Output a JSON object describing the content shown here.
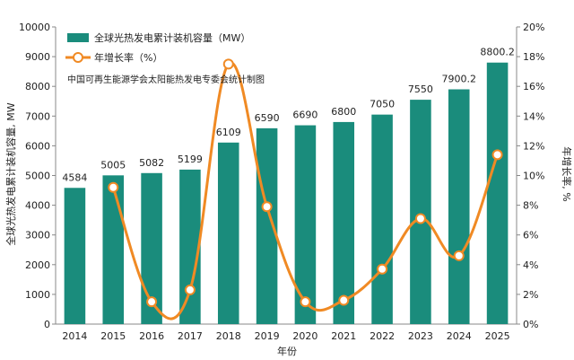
{
  "colors": {
    "bar": "#1a8c7c",
    "line": "#f08a24",
    "marker_fill": "#ffffff",
    "grid": "#d9d9d9",
    "axis": "#888888"
  },
  "legend": {
    "bars_label": "全球光热发电累计装机容量（MW）",
    "line_label": "年增长率（%）"
  },
  "note": "中国可再生能源学会太阳能热发电专委会统计制图",
  "chart_data": {
    "type": "bar+line",
    "categories": [
      "2014",
      "2015",
      "2016",
      "2017",
      "2018",
      "2019",
      "2020",
      "2021",
      "2022",
      "2023",
      "2024",
      "2025"
    ],
    "series": [
      {
        "name": "全球光热发电累计装机容量（MW）",
        "type": "bar",
        "axis": "left",
        "values": [
          4584,
          5005,
          5082,
          5199,
          6109,
          6590,
          6690,
          6800,
          7050,
          7550,
          7900.2,
          8800.2
        ],
        "value_labels": [
          "4584",
          "5005",
          "5082",
          "5199",
          "6109",
          "6590",
          "6690",
          "6800",
          "7050",
          "7550",
          "7900.2",
          "8800.2"
        ]
      },
      {
        "name": "年增长率（%）",
        "type": "line",
        "axis": "right",
        "values": [
          null,
          9.2,
          1.5,
          2.3,
          17.5,
          7.9,
          1.5,
          1.6,
          3.7,
          7.1,
          4.6,
          11.4
        ]
      }
    ],
    "xlabel": "年份",
    "ylabel": "全球光热发电累计装机容量, MW",
    "y2label": "年增长率, %",
    "ylim": [
      0,
      10000
    ],
    "y2lim": [
      0,
      20
    ],
    "yticks": [
      "0",
      "1000",
      "2000",
      "3000",
      "4000",
      "5000",
      "6000",
      "7000",
      "8000",
      "9000",
      "10000"
    ],
    "y2ticks": [
      "0%",
      "2%",
      "4%",
      "6%",
      "8%",
      "10%",
      "12%",
      "14%",
      "16%",
      "18%",
      "20%"
    ],
    "grid": false,
    "legend_position": "top-left"
  }
}
